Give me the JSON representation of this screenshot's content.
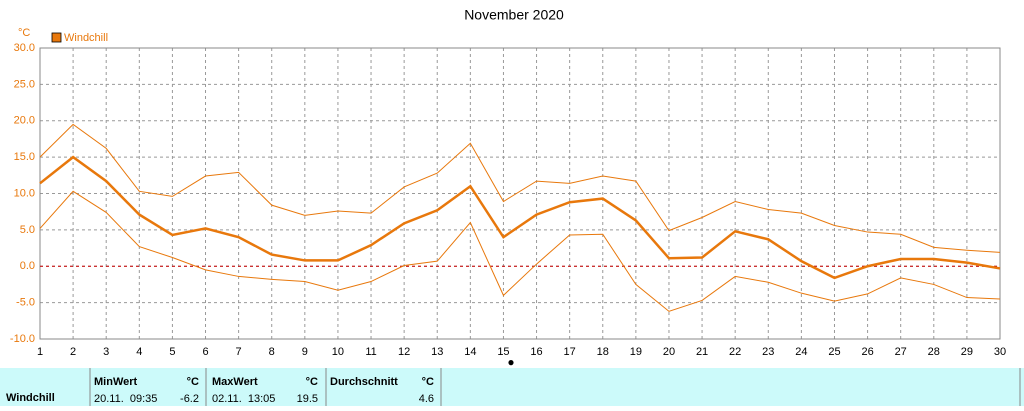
{
  "chart_data": {
    "type": "line",
    "title": "November 2020",
    "y_unit": "°C",
    "x": [
      1,
      2,
      3,
      4,
      5,
      6,
      7,
      8,
      9,
      10,
      11,
      12,
      13,
      14,
      15,
      16,
      17,
      18,
      19,
      20,
      21,
      22,
      23,
      24,
      25,
      26,
      27,
      28,
      29,
      30
    ],
    "xlim": [
      1,
      30
    ],
    "xticks": [
      1,
      2,
      3,
      4,
      5,
      6,
      7,
      8,
      9,
      10,
      11,
      12,
      13,
      14,
      15,
      16,
      17,
      18,
      19,
      20,
      21,
      22,
      23,
      24,
      25,
      26,
      27,
      28,
      29,
      30
    ],
    "ylim": [
      -10,
      30
    ],
    "yticks": [
      {
        "value": -10,
        "label": "-10.0"
      },
      {
        "value": -5,
        "label": "-5.0"
      },
      {
        "value": 0,
        "label": "0.0"
      },
      {
        "value": 5,
        "label": "5.0"
      },
      {
        "value": 10,
        "label": "10.0"
      },
      {
        "value": 15,
        "label": "15.0"
      },
      {
        "value": 20,
        "label": "20.0"
      },
      {
        "value": 25,
        "label": "25.0"
      },
      {
        "value": 30,
        "label": "30.0"
      }
    ],
    "grid": true,
    "zero_line_color": "#cc0000",
    "legend": "top-left",
    "series": [
      {
        "name": "Windchill",
        "color": "#e8780c",
        "width": 2.5,
        "values": [
          11.4,
          15.0,
          11.7,
          7.1,
          4.3,
          5.2,
          4.0,
          1.6,
          0.8,
          0.8,
          2.9,
          5.9,
          7.7,
          11.0,
          4.0,
          7.1,
          8.8,
          9.3,
          6.3,
          1.1,
          1.2,
          4.8,
          3.7,
          0.7,
          -1.6,
          0.0,
          1.0,
          1.0,
          0.5,
          -0.3
        ]
      },
      {
        "color": "#e8780c",
        "width": 1,
        "values": [
          15.0,
          19.5,
          16.2,
          10.3,
          9.6,
          12.4,
          12.9,
          8.4,
          7.0,
          7.6,
          7.3,
          10.9,
          12.8,
          16.9,
          8.9,
          11.7,
          11.4,
          12.4,
          11.7,
          4.9,
          6.7,
          8.9,
          7.8,
          7.3,
          5.6,
          4.7,
          4.4,
          2.6,
          2.2,
          1.9
        ]
      },
      {
        "color": "#e8780c",
        "width": 1,
        "values": [
          5.2,
          10.3,
          7.4,
          2.7,
          1.2,
          -0.5,
          -1.4,
          -1.8,
          -2.1,
          -3.3,
          -2.1,
          0.1,
          0.7,
          6.0,
          -4.0,
          0.3,
          4.3,
          4.4,
          -2.5,
          -6.2,
          -4.7,
          -1.4,
          -2.2,
          -3.7,
          -4.8,
          -3.8,
          -1.6,
          -2.5,
          -4.3,
          -4.5
        ]
      }
    ]
  },
  "summary": {
    "row_label": "Windchill",
    "headers": [
      "MinWert",
      "°C",
      "MaxWert",
      "°C",
      "Durchschnitt",
      "°C"
    ],
    "min_time": "20.11.  09:35",
    "min_value": "-6.2",
    "max_time": "02.11.  13:05",
    "max_value": "19.5",
    "average": "4.6"
  }
}
